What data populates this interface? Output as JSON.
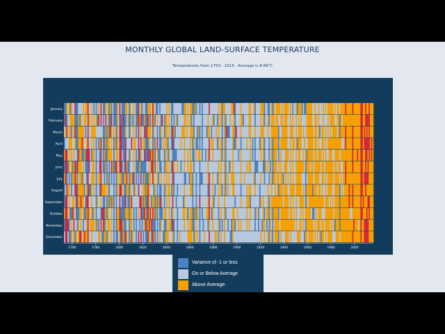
{
  "title": "MONTHLY GLOBAL LAND-SURFACE TEMPERATURE",
  "subtitle": "Temperatures from 1753 - 2015 . Average is 8.66℃",
  "chart_data": {
    "type": "heatmap",
    "title": "MONTHLY GLOBAL LAND-SURFACE TEMPERATURE",
    "subtitle": "Temperatures from 1753 - 2015 . Average is 8.66℃",
    "x_range": [
      1753,
      2015
    ],
    "x_ticks": [
      "1760",
      "1780",
      "1800",
      "1820",
      "1840",
      "1860",
      "1880",
      "1900",
      "1920",
      "1940",
      "1960",
      "1980",
      "2000"
    ],
    "y_categories": [
      "January",
      "February",
      "March",
      "April",
      "May",
      "June",
      "July",
      "August",
      "September",
      "October",
      "November",
      "December"
    ],
    "grid": false,
    "legend_position": "bottom-center",
    "base_temperature": 8.66,
    "categories": [
      {
        "key": "cold",
        "label": "Variance of -1 or less",
        "color": "#4b82bf"
      },
      {
        "key": "average",
        "label": "On or Below Average",
        "color": "#b9c9df"
      },
      {
        "key": "above",
        "label": "Above Average",
        "color": "#f6a103"
      },
      {
        "key": "hot",
        "label": "",
        "color": "#d5273a"
      }
    ],
    "periods": [
      {
        "years": [
          1753,
          1840
        ],
        "share": {
          "cold": 0.3,
          "average": 0.33,
          "above": 0.27,
          "hot": 0.1
        }
      },
      {
        "years": [
          1841,
          1900
        ],
        "share": {
          "cold": 0.18,
          "average": 0.6,
          "above": 0.2,
          "hot": 0.02
        }
      },
      {
        "years": [
          1901,
          1930
        ],
        "share": {
          "cold": 0.14,
          "average": 0.64,
          "above": 0.22,
          "hot": 0.0
        }
      },
      {
        "years": [
          1931,
          1960
        ],
        "share": {
          "cold": 0.06,
          "average": 0.42,
          "above": 0.52,
          "hot": 0.0
        }
      },
      {
        "years": [
          1961,
          1990
        ],
        "share": {
          "cold": 0.03,
          "average": 0.32,
          "above": 0.65,
          "hot": 0.0
        }
      },
      {
        "years": [
          1991,
          2004
        ],
        "share": {
          "cold": 0.0,
          "average": 0.04,
          "above": 0.9,
          "hot": 0.06
        }
      },
      {
        "years": [
          2005,
          2015
        ],
        "share": {
          "cold": 0.0,
          "average": 0.0,
          "above": 0.55,
          "hot": 0.45
        }
      }
    ],
    "palette": {
      "panel": "#133c5c",
      "axis": "#ffffff",
      "page": "#e3e7f0",
      "title": "#1b3a5c"
    }
  },
  "legend": [
    {
      "label": "Variance of -1 or less",
      "color": "#4b82bf"
    },
    {
      "label": "On or Below Average",
      "color": "#b9c9df"
    },
    {
      "label": "Above Average",
      "color": "#f6a103"
    }
  ]
}
